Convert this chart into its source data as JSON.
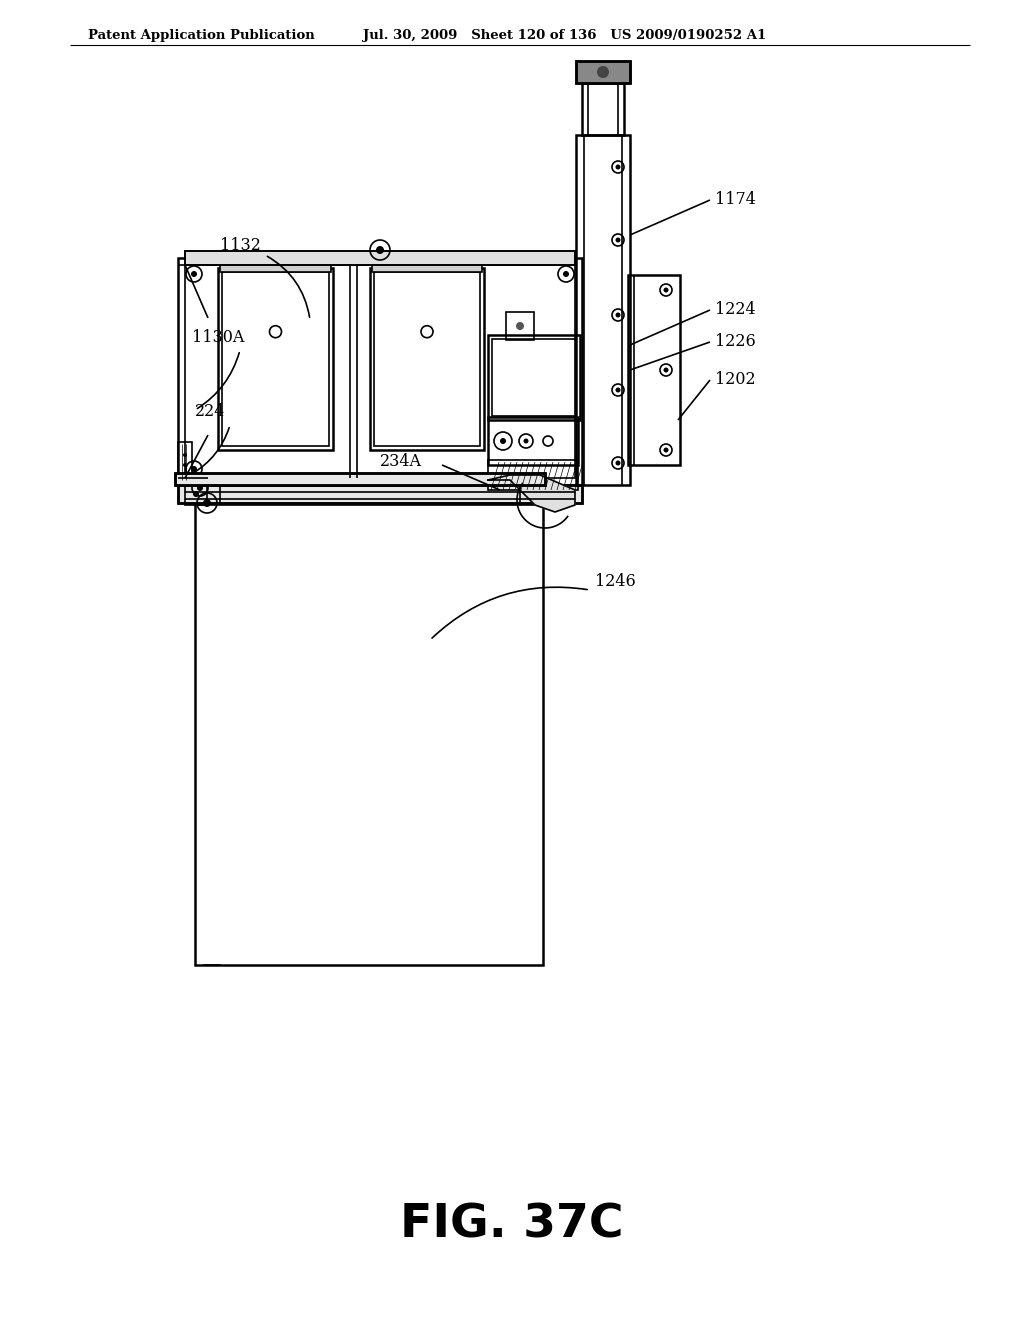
{
  "title_left": "Patent Application Publication",
  "title_right": "Jul. 30, 2009   Sheet 120 of 136   US 2009/0190252 A1",
  "fig_label": "FIG. 37C",
  "background_color": "#ffffff",
  "line_color": "#000000"
}
